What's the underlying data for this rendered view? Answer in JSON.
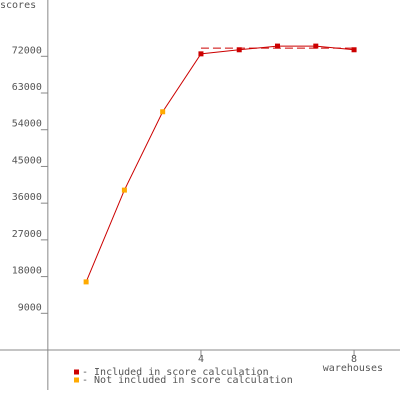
{
  "chart_data": {
    "type": "line",
    "y_label": "scores",
    "x_label": "warehouses",
    "x": [
      1,
      2,
      3,
      4,
      5,
      6,
      7,
      8
    ],
    "series": [
      {
        "name": "- Included in score calculation",
        "color": "#cc0000",
        "values": [
          null,
          null,
          null,
          72600,
          73600,
          74500,
          74500,
          73600
        ]
      },
      {
        "name": "- Not included in score calculation",
        "color": "#ffaa00",
        "values": [
          16700,
          39200,
          58400,
          null,
          null,
          null,
          null,
          null
        ]
      }
    ],
    "line_color": "#cc0000",
    "reference_line": {
      "value": 74000,
      "from": 4,
      "to": 8
    },
    "xlim": [
      -1.25,
      9.2
    ],
    "xticks": [
      4,
      8
    ],
    "ylim": [
      -9800,
      85800
    ],
    "yticks": [
      9000,
      18000,
      27000,
      36000,
      45000,
      54000,
      63000,
      72000
    ]
  }
}
